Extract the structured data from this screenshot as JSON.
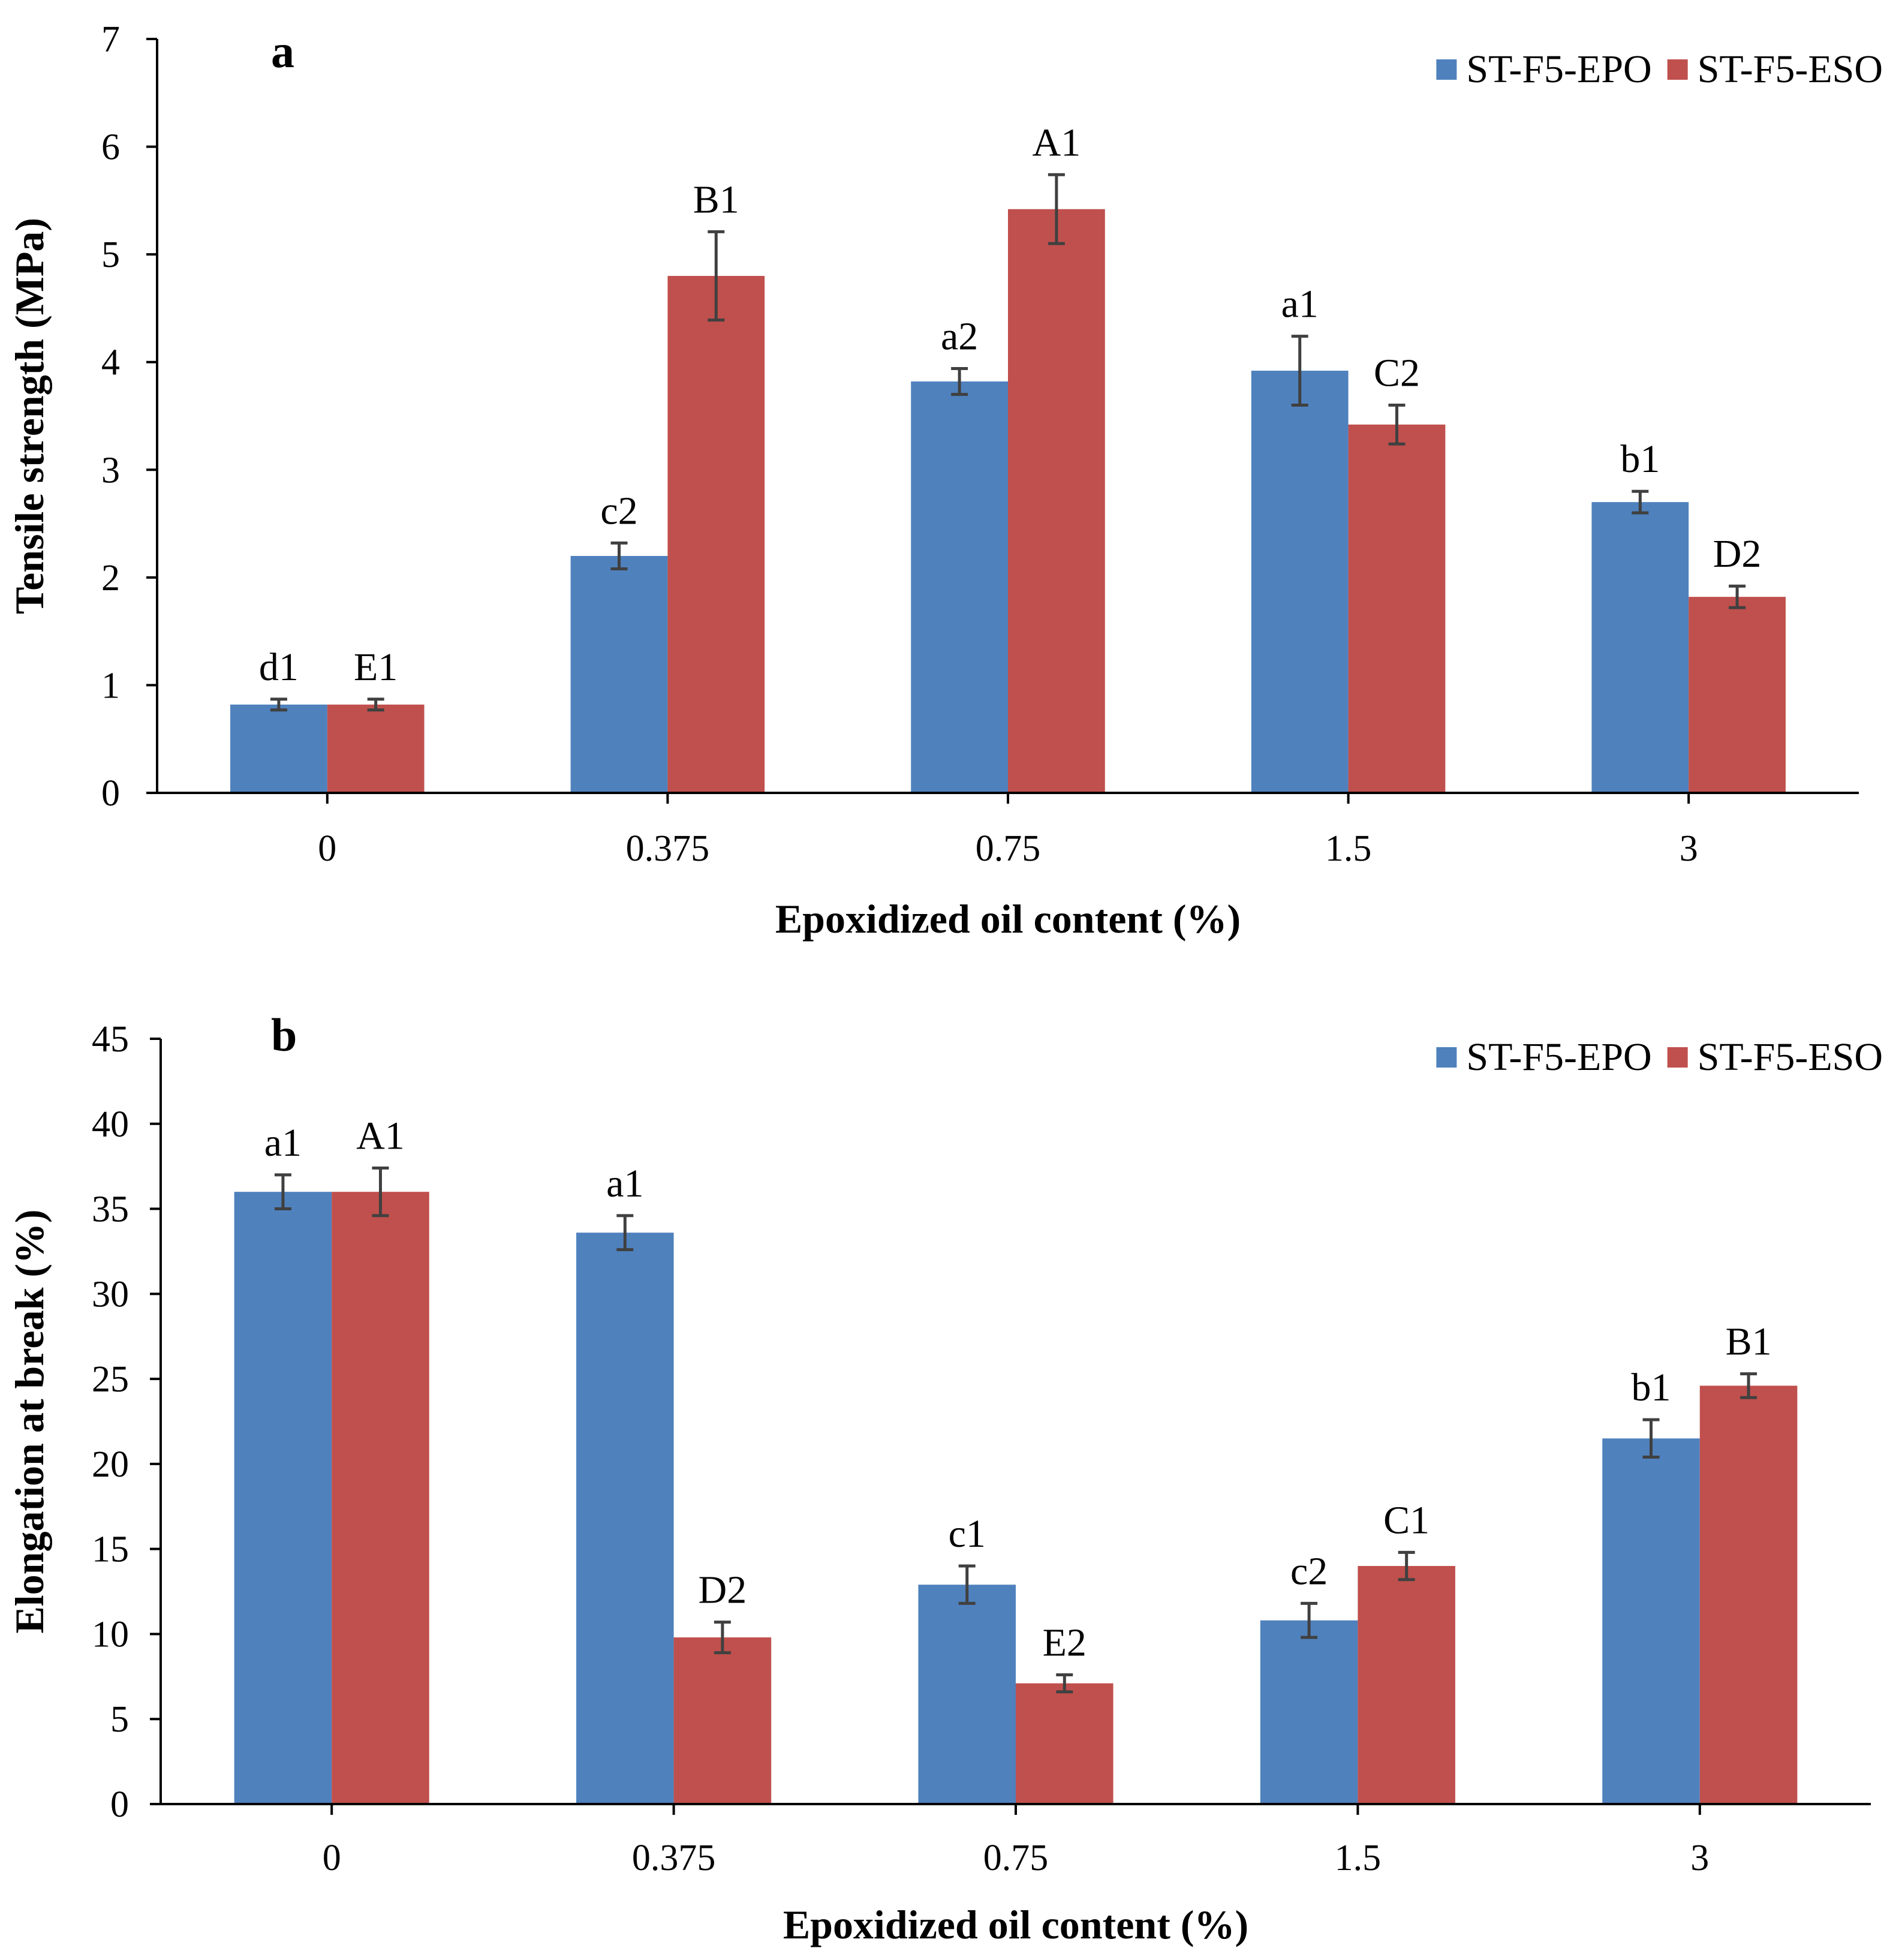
{
  "colors": {
    "epo": "#4f81bd",
    "eso": "#c0504d",
    "axis": "#000000",
    "error_bar": "#404040"
  },
  "chart_data": [
    {
      "type": "bar",
      "panel": "a",
      "categories": [
        "0",
        "0.375",
        "0.75",
        "1.5",
        "3"
      ],
      "series": [
        {
          "name": "ST-F5-EPO",
          "values": [
            0.82,
            2.2,
            3.82,
            3.92,
            2.7
          ],
          "errors": [
            0.05,
            0.12,
            0.12,
            0.32,
            0.1
          ],
          "labels": [
            "d1",
            "c2",
            "a2",
            "a1",
            "b1"
          ]
        },
        {
          "name": "ST-F5-ESO",
          "values": [
            0.82,
            4.8,
            5.42,
            3.42,
            1.82
          ],
          "errors": [
            0.05,
            0.41,
            0.32,
            0.18,
            0.1
          ],
          "labels": [
            "E1",
            "B1",
            "A1",
            "C2",
            "D2"
          ]
        }
      ],
      "xlabel": "Epoxidized oil content (%)",
      "ylabel": "Tensile strength (MPa)",
      "ylim": [
        0,
        7
      ],
      "yticks": [
        "0",
        "1",
        "2",
        "3",
        "4",
        "5",
        "6",
        "7"
      ],
      "legend": "top-right",
      "grid": false
    },
    {
      "type": "bar",
      "panel": "b",
      "categories": [
        "0",
        "0.375",
        "0.75",
        "1.5",
        "3"
      ],
      "series": [
        {
          "name": "ST-F5-EPO",
          "values": [
            36.0,
            33.6,
            12.9,
            10.8,
            21.5
          ],
          "errors": [
            1.0,
            1.0,
            1.1,
            1.0,
            1.1
          ],
          "labels": [
            "a1",
            "a1",
            "c1",
            "c2",
            "b1"
          ]
        },
        {
          "name": "ST-F5-ESO",
          "values": [
            36.0,
            9.8,
            7.1,
            14.0,
            24.6
          ],
          "errors": [
            1.4,
            0.9,
            0.5,
            0.8,
            0.7
          ],
          "labels": [
            "A1",
            "D2",
            "E2",
            "C1",
            "B1"
          ]
        }
      ],
      "xlabel": "Epoxidized oil content (%)",
      "ylabel": "Elongation at break (%)",
      "ylim": [
        0,
        45
      ],
      "yticks": [
        "0",
        "5",
        "10",
        "15",
        "20",
        "25",
        "30",
        "35",
        "40",
        "45"
      ],
      "legend": "top-right",
      "grid": false
    }
  ]
}
